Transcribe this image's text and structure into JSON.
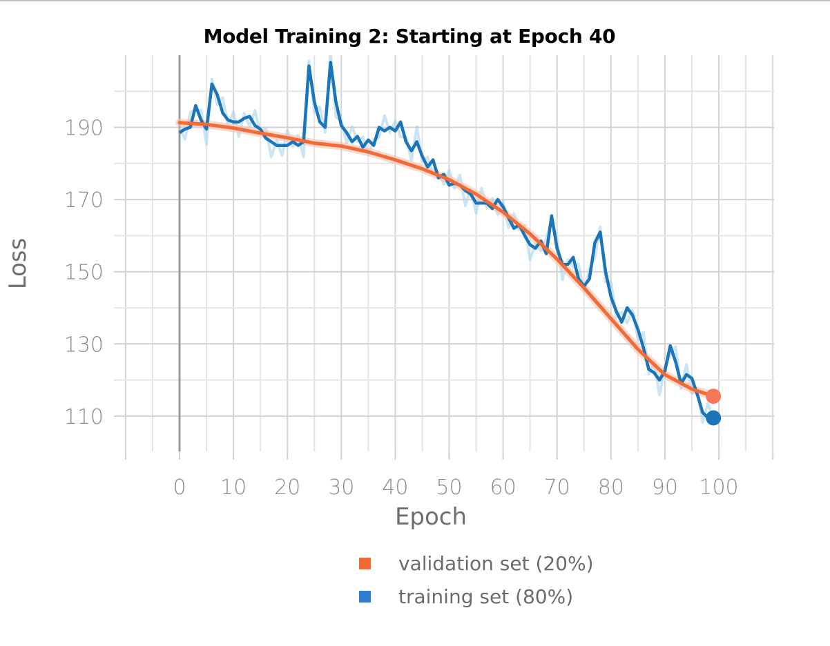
{
  "chart_data": {
    "type": "line",
    "title": "Model Training 2: Starting at Epoch 40",
    "xlabel": "Epoch",
    "ylabel": "Loss",
    "xlim": [
      -10,
      110
    ],
    "ylim": [
      100,
      201
    ],
    "xticks": [
      0,
      10,
      20,
      30,
      40,
      50,
      60,
      70,
      80,
      90,
      100
    ],
    "yticks": [
      110,
      130,
      150,
      170,
      190
    ],
    "grid": true,
    "legend_position": "bottom",
    "series": [
      {
        "name": "validation set (20%)",
        "color": "#f26b36",
        "x": [
          0,
          5,
          10,
          15,
          20,
          25,
          30,
          35,
          40,
          45,
          50,
          55,
          60,
          65,
          70,
          75,
          80,
          85,
          90,
          95,
          99
        ],
        "values": [
          191.3,
          190.8,
          189.8,
          188.4,
          187.1,
          185.6,
          184.8,
          183.2,
          181.0,
          178.5,
          175.5,
          171.5,
          166.5,
          160.5,
          153.5,
          145.5,
          137.0,
          128.5,
          121.5,
          117.5,
          115.5
        ]
      },
      {
        "name": "training set (80%)",
        "color": "#1c75b8",
        "x": [
          0,
          1,
          2,
          3,
          4,
          5,
          6,
          7,
          8,
          9,
          10,
          11,
          12,
          13,
          14,
          15,
          16,
          17,
          18,
          19,
          20,
          21,
          22,
          23,
          24,
          25,
          26,
          27,
          28,
          29,
          30,
          31,
          32,
          33,
          34,
          35,
          36,
          37,
          38,
          39,
          40,
          41,
          42,
          43,
          44,
          45,
          46,
          47,
          48,
          49,
          50,
          51,
          52,
          53,
          54,
          55,
          56,
          57,
          58,
          59,
          60,
          61,
          62,
          63,
          64,
          65,
          66,
          67,
          68,
          69,
          70,
          71,
          72,
          73,
          74,
          75,
          76,
          77,
          78,
          79,
          80,
          81,
          82,
          83,
          84,
          85,
          86,
          87,
          88,
          89,
          90,
          91,
          92,
          93,
          94,
          95,
          96,
          97,
          98,
          99
        ],
        "values": [
          188.5,
          189.5,
          190.0,
          196.0,
          192.0,
          189.5,
          202.0,
          199.0,
          194.0,
          192.0,
          191.5,
          191.5,
          192.5,
          193.0,
          190.5,
          189.5,
          187.0,
          186.0,
          185.0,
          185.0,
          185.0,
          186.0,
          185.0,
          186.0,
          207.0,
          197.0,
          191.5,
          190.0,
          208.0,
          197.0,
          190.5,
          188.5,
          186.0,
          187.5,
          184.5,
          186.5,
          185.0,
          190.0,
          189.0,
          190.0,
          189.0,
          191.5,
          186.0,
          183.5,
          186.0,
          182.0,
          179.0,
          181.0,
          176.0,
          177.0,
          174.0,
          174.5,
          174.0,
          172.5,
          171.5,
          169.0,
          169.0,
          169.0,
          167.5,
          170.0,
          168.0,
          165.0,
          162.0,
          163.0,
          160.0,
          157.5,
          156.5,
          158.5,
          155.0,
          165.5,
          156.5,
          152.0,
          152.0,
          154.0,
          148.0,
          146.0,
          148.0,
          158.0,
          161.0,
          150.0,
          143.0,
          139.0,
          136.0,
          140.0,
          138.0,
          134.0,
          129.0,
          123.0,
          122.0,
          120.0,
          122.5,
          129.5,
          125.0,
          119.0,
          121.5,
          120.5,
          116.0,
          111.0,
          109.5,
          109.5
        ]
      }
    ]
  }
}
